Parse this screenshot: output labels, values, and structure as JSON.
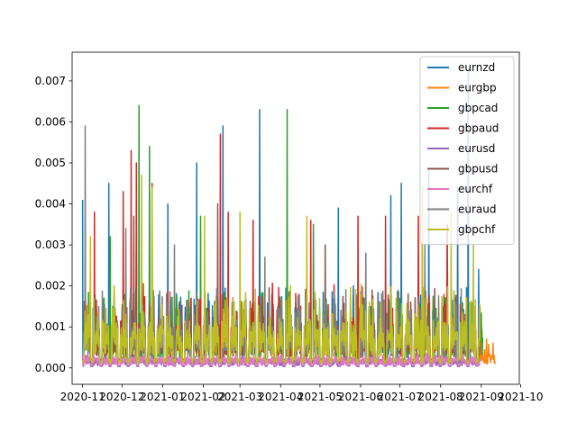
{
  "chart_data": {
    "type": "line",
    "title": "",
    "xlabel": "",
    "ylabel": "",
    "x_axis": {
      "ticks": [
        "2020-11",
        "2020-12",
        "2021-01",
        "2021-02",
        "2021-03",
        "2021-04",
        "2021-05",
        "2021-06",
        "2021-07",
        "2021-08",
        "2021-09",
        "2021-10"
      ],
      "range": [
        "2020-10-24",
        "2021-09-30"
      ]
    },
    "y_axis": {
      "ticks": [
        "0.000",
        "0.001",
        "0.002",
        "0.003",
        "0.004",
        "0.005",
        "0.006",
        "0.007"
      ],
      "range": [
        -0.0004,
        0.0077
      ]
    },
    "legend": {
      "placement": "top-right"
    },
    "grid": false,
    "series": [
      {
        "name": "eurnzd",
        "color": "#1f77b4",
        "peaks": [
          [
            "2020-11-01",
            0.0041
          ],
          [
            "2020-11-21",
            0.0045
          ],
          [
            "2020-12-12",
            0.0035
          ],
          [
            "2021-01-05",
            0.004
          ],
          [
            "2021-01-27",
            0.005
          ],
          [
            "2021-02-16",
            0.0059
          ],
          [
            "2021-03-16",
            0.0063
          ],
          [
            "2021-05-15",
            0.0039
          ],
          [
            "2021-06-24",
            0.0042
          ],
          [
            "2021-07-02",
            0.0045
          ],
          [
            "2021-07-23",
            0.0048
          ],
          [
            "2021-08-14",
            0.0044
          ],
          [
            "2021-08-22",
            0.0073
          ],
          [
            "2021-08-30",
            0.0024
          ]
        ]
      },
      {
        "name": "eurgbp",
        "color": "#ff7f0e",
        "peaks": [
          [
            "2021-09-01",
            0.0008
          ],
          [
            "2021-09-05",
            0.0007
          ],
          [
            "2021-09-10",
            0.0006
          ]
        ]
      },
      {
        "name": "gbpcad",
        "color": "#2ca02c",
        "peaks": [
          [
            "2020-11-22",
            0.0032
          ],
          [
            "2020-12-14",
            0.0064
          ],
          [
            "2020-12-22",
            0.0054
          ],
          [
            "2021-01-30",
            0.0037
          ],
          [
            "2021-04-06",
            0.0063
          ],
          [
            "2021-04-26",
            0.0035
          ],
          [
            "2021-08-31",
            0.0015
          ]
        ]
      },
      {
        "name": "gbpaud",
        "color": "#d62728",
        "peaks": [
          [
            "2020-11-10",
            0.0038
          ],
          [
            "2020-12-02",
            0.0043
          ],
          [
            "2020-12-08",
            0.0053
          ],
          [
            "2020-12-12",
            0.005
          ],
          [
            "2020-12-24",
            0.0045
          ],
          [
            "2021-02-14",
            0.0057
          ],
          [
            "2021-02-20",
            0.0038
          ],
          [
            "2021-03-11",
            0.0036
          ],
          [
            "2021-04-24",
            0.0036
          ],
          [
            "2021-05-30",
            0.0037
          ],
          [
            "2021-06-20",
            0.0037
          ],
          [
            "2021-07-15",
            0.0037
          ],
          [
            "2021-08-06",
            0.0035
          ]
        ]
      },
      {
        "name": "eurusd",
        "color": "#9467bd",
        "peaks": [
          [
            "2020-11-05",
            0.0004
          ],
          [
            "2021-01-15",
            0.0003
          ],
          [
            "2021-06-10",
            0.0003
          ]
        ]
      },
      {
        "name": "gbpusd",
        "color": "#8c564b",
        "peaks": [
          [
            "2020-12-10",
            0.0037
          ],
          [
            "2021-02-12",
            0.004
          ],
          [
            "2021-05-05",
            0.003
          ]
        ]
      },
      {
        "name": "eurchf",
        "color": "#e377c2",
        "peaks": [
          [
            "2020-11-01",
            0.0003
          ],
          [
            "2021-03-01",
            0.0003
          ],
          [
            "2021-08-01",
            0.0003
          ]
        ]
      },
      {
        "name": "euraud",
        "color": "#7f7f7f",
        "peaks": [
          [
            "2020-11-03",
            0.0059
          ],
          [
            "2020-12-04",
            0.0034
          ],
          [
            "2021-01-10",
            0.003
          ],
          [
            "2021-03-20",
            0.0027
          ],
          [
            "2021-06-05",
            0.0028
          ],
          [
            "2021-07-20",
            0.003
          ]
        ]
      },
      {
        "name": "gbpchf",
        "color": "#bcbd22",
        "peaks": [
          [
            "2020-11-07",
            0.0032
          ],
          [
            "2020-12-16",
            0.0047
          ],
          [
            "2020-12-24",
            0.0044
          ],
          [
            "2021-02-02",
            0.0037
          ],
          [
            "2021-03-01",
            0.0038
          ],
          [
            "2021-04-21",
            0.0037
          ],
          [
            "2021-07-18",
            0.0044
          ],
          [
            "2021-08-09",
            0.0038
          ],
          [
            "2021-08-26",
            0.003
          ]
        ]
      }
    ]
  }
}
